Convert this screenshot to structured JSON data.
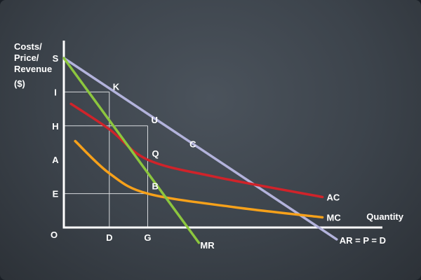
{
  "chart_data": {
    "type": "line",
    "ylabel_lines": [
      "Costs/",
      "Price/",
      "Revenue",
      "($)"
    ],
    "xlabel": "Quantity",
    "origin_label": "O",
    "y_tick_labels": [
      {
        "label": "S",
        "y": 10
      },
      {
        "label": "I",
        "y": 8
      },
      {
        "label": "H",
        "y": 6
      },
      {
        "label": "A",
        "y": 4
      },
      {
        "label": "E",
        "y": 2
      }
    ],
    "x_tick_labels": [
      {
        "label": "D",
        "x": 1.6
      },
      {
        "label": "G",
        "x": 2.95
      }
    ],
    "series": [
      {
        "name": "AR = P = D",
        "color": "#b3b3dc",
        "points": [
          [
            0,
            10
          ],
          [
            9.6,
            -0.7
          ]
        ]
      },
      {
        "name": "MR",
        "color": "#8cc63e",
        "points": [
          [
            0,
            10
          ],
          [
            4.75,
            -0.9
          ]
        ]
      },
      {
        "name": "AC",
        "color": "#d0232a",
        "points": [
          [
            0.25,
            7.3
          ],
          [
            1.6,
            5.8
          ],
          [
            2.95,
            4.0
          ],
          [
            5.3,
            3.0
          ],
          [
            9.1,
            1.8
          ]
        ]
      },
      {
        "name": "MC",
        "color": "#f7a11a",
        "points": [
          [
            0.4,
            5.1
          ],
          [
            1.6,
            3.2
          ],
          [
            2.95,
            2.0
          ],
          [
            6.0,
            1.2
          ],
          [
            9.1,
            0.6
          ]
        ]
      }
    ],
    "point_labels": [
      {
        "label": "K",
        "x": 1.6,
        "y": 8
      },
      {
        "label": "U",
        "x": 2.95,
        "y": 6
      },
      {
        "label": "C",
        "x": 4.3,
        "y": 4.6
      },
      {
        "label": "Q",
        "x": 2.95,
        "y": 4
      },
      {
        "label": "B",
        "x": 2.95,
        "y": 2
      }
    ],
    "guide_lines": [
      {
        "from": [
          0,
          8
        ],
        "to": [
          1.6,
          8
        ]
      },
      {
        "from": [
          1.6,
          8
        ],
        "to": [
          1.6,
          0
        ]
      },
      {
        "from": [
          0,
          6
        ],
        "to": [
          2.95,
          6
        ]
      },
      {
        "from": [
          2.95,
          6
        ],
        "to": [
          2.95,
          0
        ]
      },
      {
        "from": [
          0,
          2
        ],
        "to": [
          2.95,
          2
        ]
      }
    ],
    "grid": false,
    "legend": "none"
  }
}
